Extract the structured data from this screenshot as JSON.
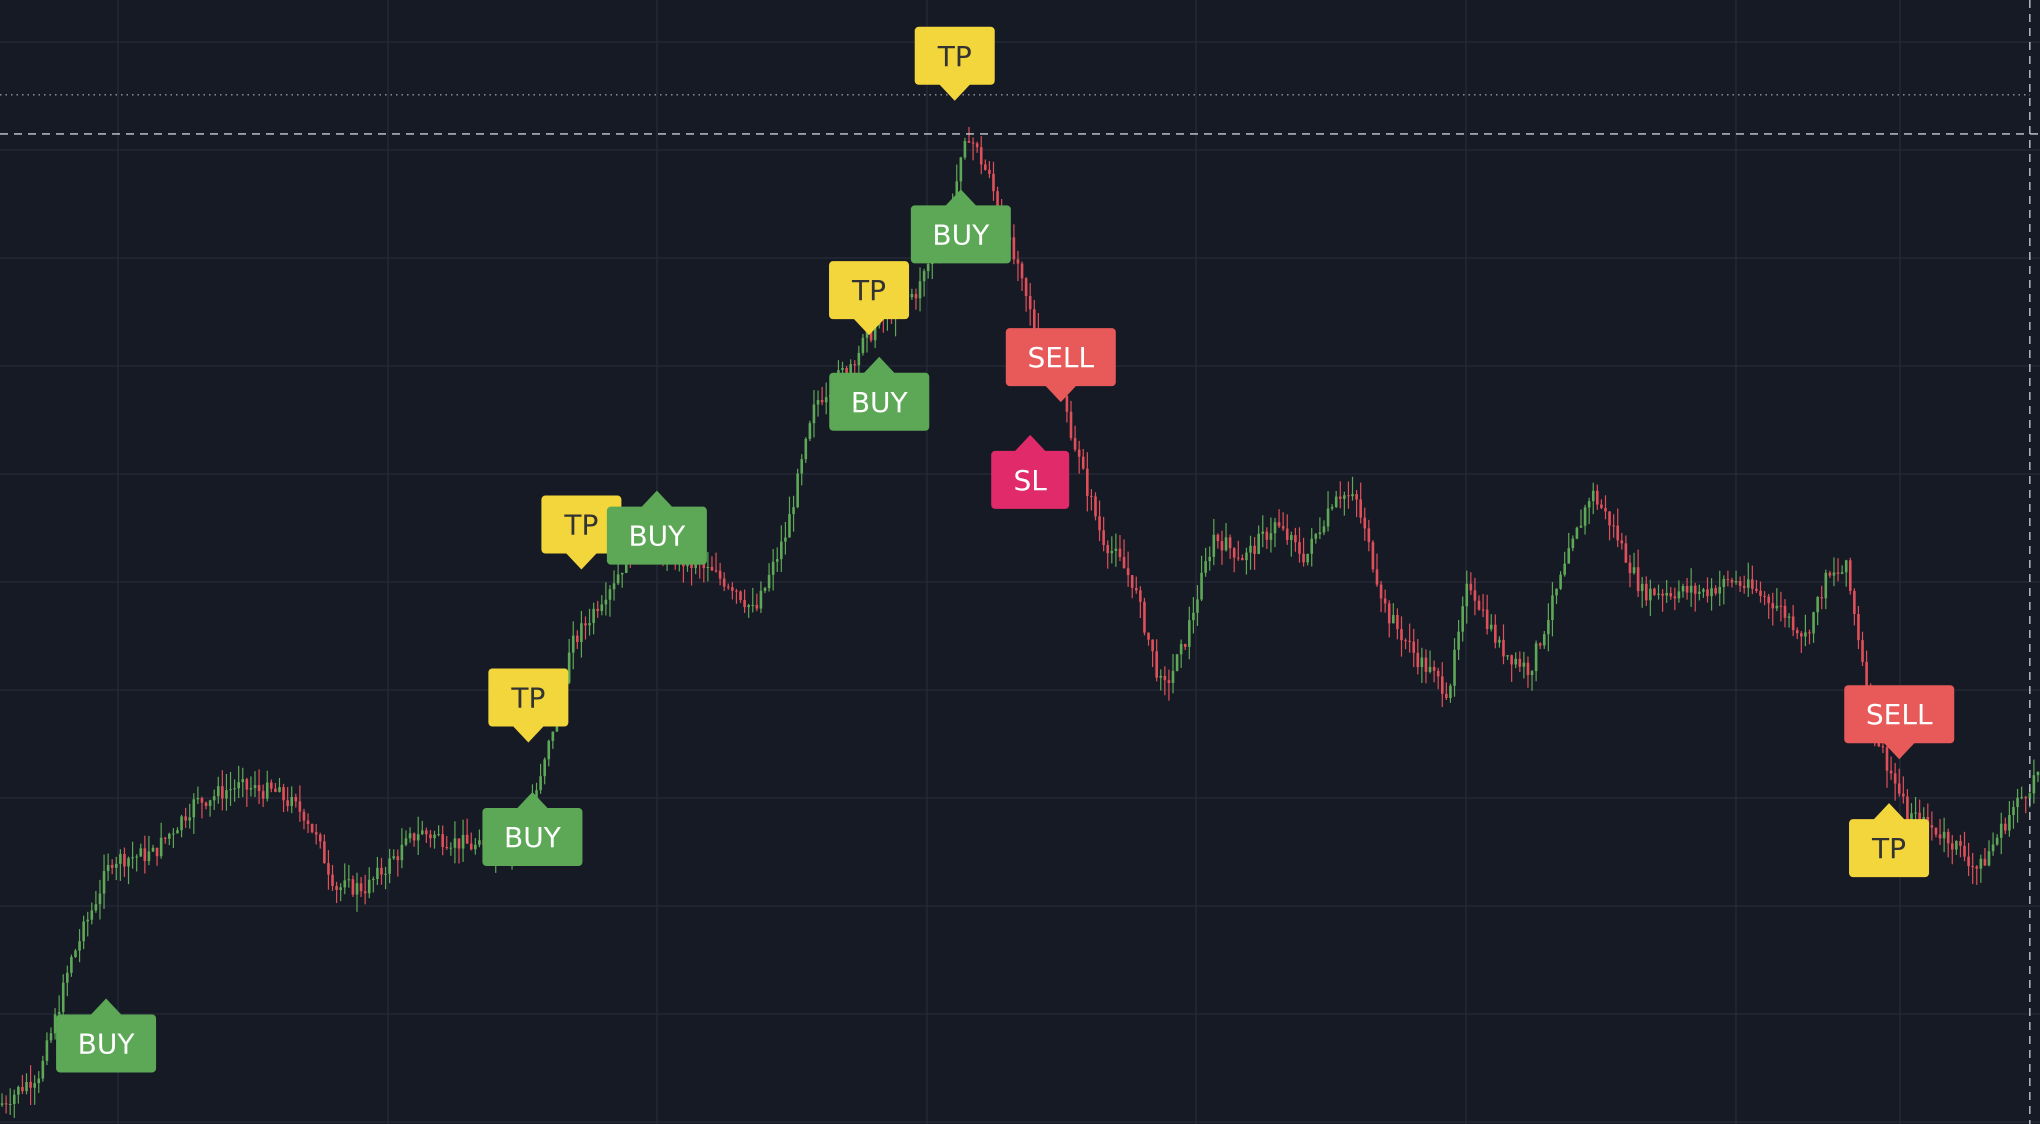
{
  "colors": {
    "background": "#161a25",
    "grid": "#262b38",
    "bull": "#5fa857",
    "bear": "#e0505a",
    "crosshair": "#c9ccd4",
    "buy": "#5ca856",
    "sell": "#e85a5a",
    "tp": "#f3d63b",
    "sl": "#e02a6a"
  },
  "chart_data": {
    "type": "candlestick",
    "title": "",
    "xlabel": "",
    "ylabel": "",
    "x_range": [
      0,
      1000
    ],
    "y_range": [
      0,
      100
    ],
    "grid": true,
    "crosshair": {
      "x": 995,
      "y": 88
    },
    "reference_line": {
      "y": 91.5
    },
    "price_anchors": [
      [
        0,
        1.0
      ],
      [
        20,
        4.0
      ],
      [
        35,
        14.0
      ],
      [
        55,
        23.0
      ],
      [
        75,
        23.5
      ],
      [
        95,
        28.0
      ],
      [
        115,
        29.5
      ],
      [
        135,
        29.0
      ],
      [
        150,
        27.0
      ],
      [
        165,
        20.5
      ],
      [
        180,
        20.5
      ],
      [
        205,
        25.5
      ],
      [
        235,
        24.0
      ],
      [
        250,
        24.0
      ],
      [
        265,
        30.0
      ],
      [
        280,
        42.0
      ],
      [
        295,
        46.5
      ],
      [
        315,
        52.0
      ],
      [
        330,
        50.0
      ],
      [
        345,
        49.0
      ],
      [
        360,
        47.5
      ],
      [
        370,
        45.0
      ],
      [
        385,
        52.0
      ],
      [
        400,
        64.0
      ],
      [
        415,
        67.0
      ],
      [
        430,
        71.0
      ],
      [
        450,
        74.0
      ],
      [
        465,
        81.0
      ],
      [
        475,
        88.0
      ],
      [
        485,
        84.0
      ],
      [
        495,
        78.0
      ],
      [
        510,
        69.0
      ],
      [
        520,
        65.0
      ],
      [
        530,
        58.0
      ],
      [
        540,
        52.0
      ],
      [
        555,
        48.0
      ],
      [
        570,
        38.0
      ],
      [
        580,
        42.0
      ],
      [
        595,
        52.0
      ],
      [
        610,
        50.0
      ],
      [
        625,
        53.0
      ],
      [
        640,
        50.0
      ],
      [
        655,
        56.0
      ],
      [
        665,
        55.0
      ],
      [
        680,
        45.0
      ],
      [
        695,
        41.0
      ],
      [
        710,
        38.0
      ],
      [
        720,
        48.0
      ],
      [
        735,
        42.0
      ],
      [
        750,
        40.0
      ],
      [
        765,
        48.0
      ],
      [
        780,
        56.0
      ],
      [
        790,
        53.0
      ],
      [
        805,
        47.0
      ],
      [
        820,
        47.0
      ],
      [
        835,
        47.0
      ],
      [
        850,
        48.0
      ],
      [
        870,
        46.0
      ],
      [
        885,
        43.0
      ],
      [
        895,
        48.0
      ],
      [
        905,
        49.0
      ],
      [
        920,
        34.0
      ],
      [
        935,
        27.0
      ],
      [
        955,
        25.0
      ],
      [
        970,
        22.0
      ],
      [
        985,
        27.0
      ],
      [
        1000,
        31.0
      ]
    ],
    "signals": [
      {
        "type": "BUY",
        "x": 52,
        "y": 6.5
      },
      {
        "type": "BUY",
        "x": 261,
        "y": 25.0
      },
      {
        "type": "TP",
        "x": 259,
        "y": 37.5
      },
      {
        "type": "TP",
        "x": 285,
        "y": 53.0
      },
      {
        "type": "BUY",
        "x": 322,
        "y": 52.0
      },
      {
        "type": "BUY",
        "x": 431,
        "y": 64.0
      },
      {
        "type": "TP",
        "x": 426,
        "y": 74.0
      },
      {
        "type": "BUY",
        "x": 471,
        "y": 79.0
      },
      {
        "type": "TP",
        "x": 468,
        "y": 95.0
      },
      {
        "type": "SELL",
        "x": 520,
        "y": 68.0
      },
      {
        "type": "SL",
        "x": 505,
        "y": 57.0
      },
      {
        "type": "SELL",
        "x": 931,
        "y": 36.0
      },
      {
        "type": "TP",
        "x": 926,
        "y": 24.0
      }
    ]
  }
}
